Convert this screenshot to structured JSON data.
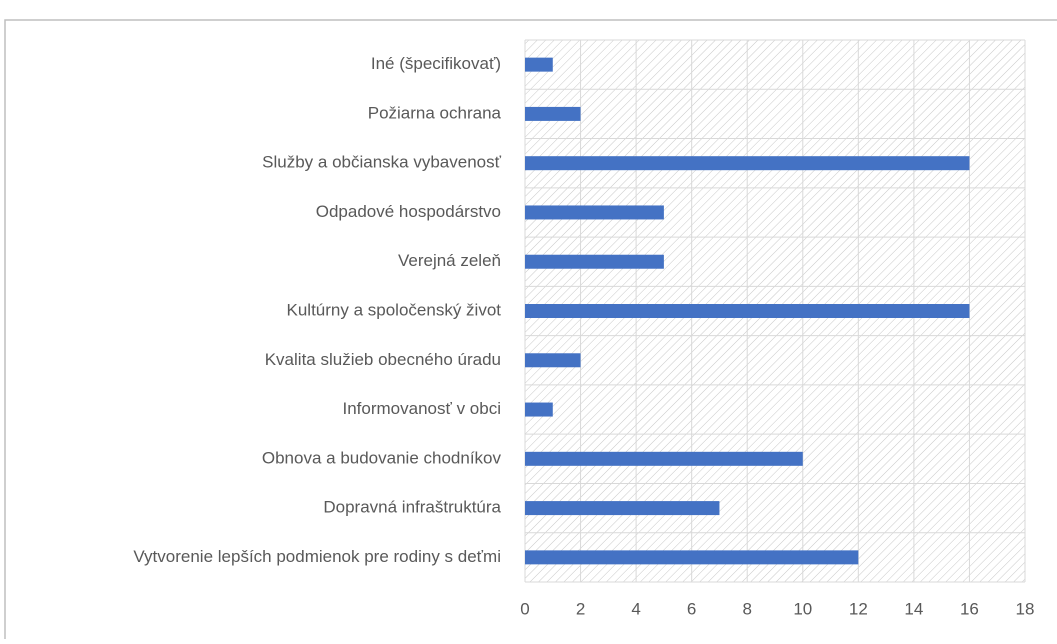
{
  "chart_data": {
    "type": "bar",
    "orientation": "horizontal",
    "categories": [
      "Iné (špecifikovať)",
      "Požiarna ochrana",
      "Služby a občianska vybavenosť",
      "Odpadové hospodárstvo",
      "Verejná zeleň",
      "Kultúrny a spoločenský život",
      "Kvalita služieb obecného úradu",
      "Informovanosť v obci",
      "Obnova a budovanie chodníkov",
      "Dopravná infraštruktúra",
      "Vytvorenie lepších podmienok pre rodiny s deťmi"
    ],
    "values": [
      1,
      2,
      16,
      5,
      5,
      16,
      2,
      1,
      10,
      7,
      12
    ],
    "color": "#4472c4",
    "xlim": [
      0,
      18
    ],
    "xticks": [
      0,
      2,
      4,
      6,
      8,
      10,
      12,
      14,
      16,
      18
    ],
    "grid": true
  }
}
